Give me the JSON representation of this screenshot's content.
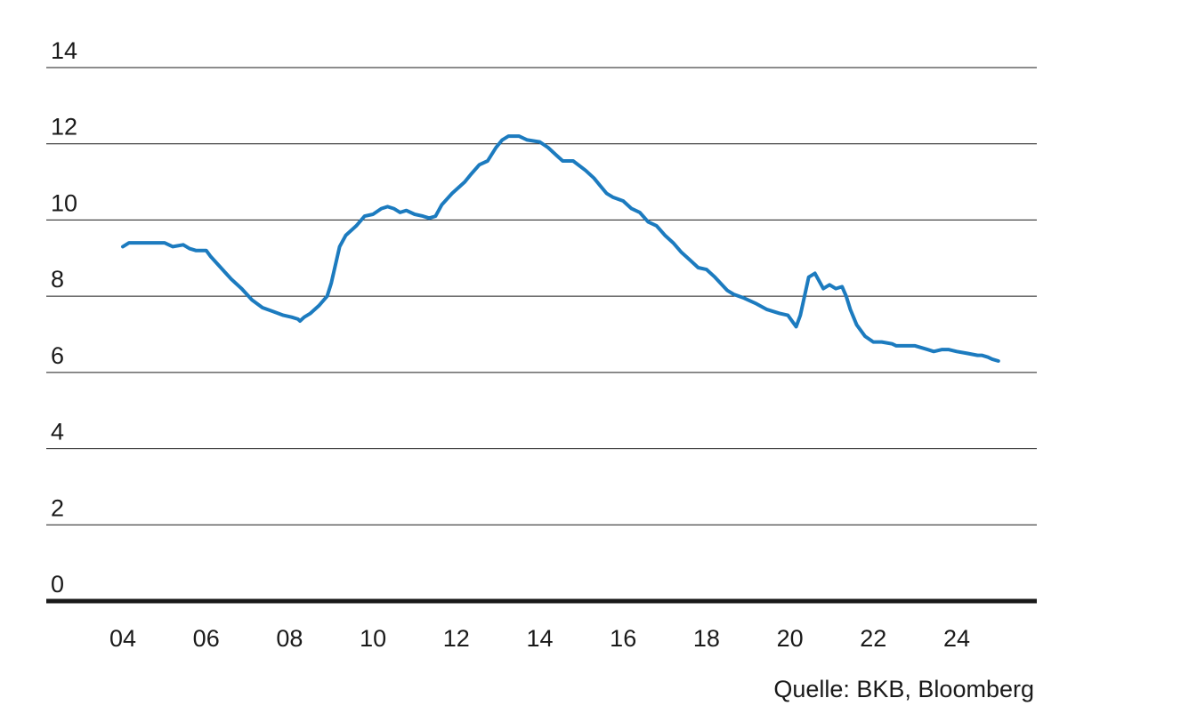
{
  "chart_data": {
    "type": "line",
    "title": "",
    "xlabel": "",
    "ylabel": "",
    "ylim": [
      0,
      14
    ],
    "xlim": [
      2004,
      2025.8
    ],
    "yticks": [
      "0",
      "2",
      "4",
      "6",
      "8",
      "10",
      "12",
      "14"
    ],
    "xticks": [
      "04",
      "06",
      "08",
      "10",
      "12",
      "14",
      "16",
      "18",
      "20",
      "22",
      "24"
    ],
    "grid": true,
    "legend": "none",
    "color": "#1c7bbf",
    "source": "Quelle: BKB, Bloomberg",
    "series": [
      {
        "x": [
          2004.0,
          2004.15,
          2004.5,
          2005.0,
          2005.2,
          2005.45,
          2005.6,
          2005.75,
          2006.0,
          2006.1,
          2006.35,
          2006.6,
          2006.85,
          2007.1,
          2007.35,
          2007.6,
          2007.85,
          2008.05,
          2008.2,
          2008.25,
          2008.35,
          2008.5,
          2008.7,
          2008.9,
          2009.0,
          2009.2,
          2009.35,
          2009.6,
          2009.8,
          2010.0,
          2010.2,
          2010.35,
          2010.5,
          2010.65,
          2010.8,
          2011.0,
          2011.2,
          2011.35,
          2011.5,
          2011.65,
          2011.9,
          2012.2,
          2012.35,
          2012.55,
          2012.75,
          2012.95,
          2013.1,
          2013.25,
          2013.5,
          2013.7,
          2014.0,
          2014.2,
          2014.4,
          2014.55,
          2014.8,
          2015.1,
          2015.3,
          2015.45,
          2015.6,
          2015.75,
          2016.0,
          2016.2,
          2016.4,
          2016.6,
          2016.8,
          2017.0,
          2017.2,
          2017.4,
          2017.6,
          2017.8,
          2018.0,
          2018.2,
          2018.5,
          2018.65,
          2018.9,
          2019.2,
          2019.45,
          2019.75,
          2019.95,
          2020.15,
          2020.25,
          2020.45,
          2020.6,
          2020.8,
          2020.95,
          2021.1,
          2021.25,
          2021.35,
          2021.45,
          2021.6,
          2021.8,
          2022.0,
          2022.2,
          2022.45,
          2022.55,
          2022.75,
          2023.0,
          2023.3,
          2023.45,
          2023.65,
          2023.8,
          2024.0,
          2024.25,
          2024.5,
          2024.6,
          2024.75,
          2024.85,
          2025.0
        ],
        "y": [
          9.3,
          9.4,
          9.4,
          9.4,
          9.3,
          9.35,
          9.25,
          9.2,
          9.2,
          9.05,
          8.75,
          8.45,
          8.2,
          7.9,
          7.7,
          7.6,
          7.5,
          7.45,
          7.4,
          7.35,
          7.45,
          7.55,
          7.75,
          8.0,
          8.35,
          9.3,
          9.6,
          9.85,
          10.1,
          10.15,
          10.3,
          10.35,
          10.3,
          10.2,
          10.25,
          10.15,
          10.1,
          10.05,
          10.1,
          10.4,
          10.7,
          11.0,
          11.2,
          11.45,
          11.55,
          11.9,
          12.1,
          12.2,
          12.2,
          12.1,
          12.05,
          11.9,
          11.7,
          11.55,
          11.55,
          11.3,
          11.1,
          10.9,
          10.7,
          10.6,
          10.5,
          10.3,
          10.2,
          9.95,
          9.85,
          9.6,
          9.4,
          9.15,
          8.95,
          8.75,
          8.7,
          8.5,
          8.15,
          8.05,
          7.95,
          7.8,
          7.65,
          7.55,
          7.5,
          7.2,
          7.5,
          8.5,
          8.6,
          8.2,
          8.3,
          8.2,
          8.25,
          8.0,
          7.65,
          7.25,
          6.95,
          6.8,
          6.8,
          6.75,
          6.7,
          6.7,
          6.7,
          6.6,
          6.55,
          6.6,
          6.6,
          6.55,
          6.5,
          6.45,
          6.45,
          6.4,
          6.35,
          6.3
        ]
      }
    ]
  }
}
